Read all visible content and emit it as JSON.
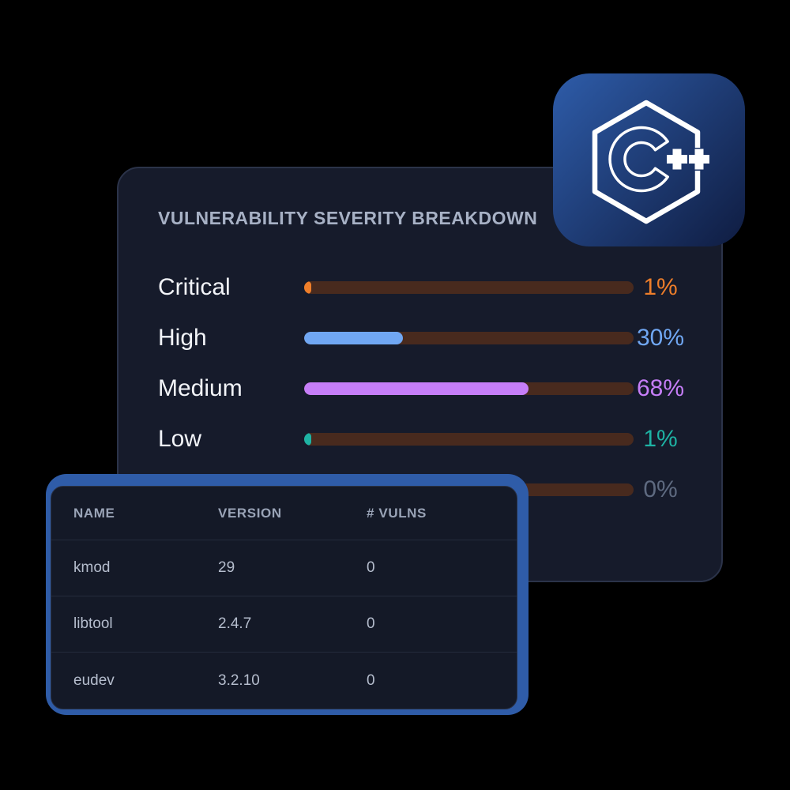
{
  "page": {
    "background": "#000000"
  },
  "severity_card": {
    "title": "VULNERABILITY SEVERITY BREAKDOWN",
    "track_color": "#482A1E",
    "rows": [
      {
        "label": "Critical",
        "value": 1,
        "pct": "1%",
        "color": "#EE7E2A"
      },
      {
        "label": "High",
        "value": 30,
        "pct": "30%",
        "color": "#70A7F3"
      },
      {
        "label": "Medium",
        "value": 68,
        "pct": "68%",
        "color": "#C67EF8"
      },
      {
        "label": "Low",
        "value": 1,
        "pct": "1%",
        "color": "#1EB3A4"
      },
      {
        "label": "",
        "value": 0,
        "pct": "0%",
        "color": "#5E6A80"
      }
    ]
  },
  "packages_table": {
    "frame_color": "#2F5CA8",
    "columns": [
      "NAME",
      "VERSION",
      "# VULNS"
    ],
    "rows": [
      {
        "name": "kmod",
        "version": "29",
        "vulns": "0"
      },
      {
        "name": "libtool",
        "version": "2.4.7",
        "vulns": "0"
      },
      {
        "name": "eudev",
        "version": "3.2.10",
        "vulns": "0"
      }
    ]
  },
  "badge": {
    "logo": "C++",
    "gradient_start": "#2E5CA9",
    "gradient_end": "#101E44"
  },
  "chart_data": {
    "type": "bar",
    "title": "VULNERABILITY SEVERITY BREAKDOWN",
    "orientation": "horizontal",
    "categories": [
      "Critical",
      "High",
      "Medium",
      "Low",
      ""
    ],
    "values": [
      1,
      30,
      68,
      1,
      0
    ],
    "data_labels": [
      "1%",
      "30%",
      "68%",
      "1%",
      "0%"
    ],
    "colors": [
      "#EE7E2A",
      "#70A7F3",
      "#C67EF8",
      "#1EB3A4",
      "#5E6A80"
    ],
    "xlim": [
      0,
      100
    ],
    "grid": false,
    "legend": false
  }
}
